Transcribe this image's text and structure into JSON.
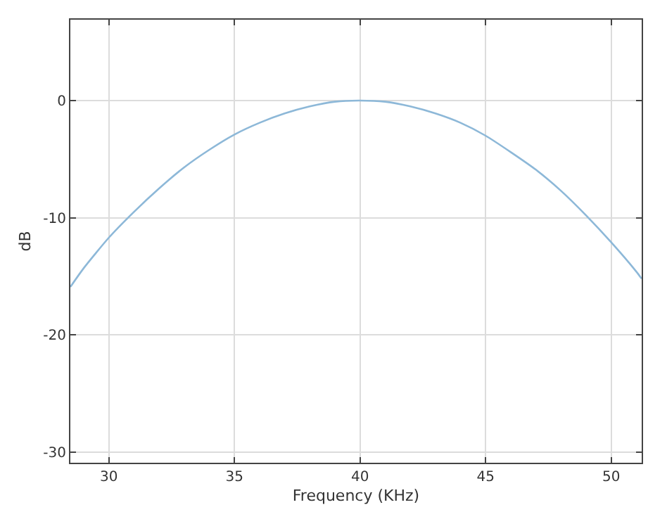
{
  "chart_data": {
    "type": "line",
    "xlabel": "Frequency (KHz)",
    "ylabel": "dB",
    "x": [
      28.47,
      29,
      30,
      31,
      32,
      33,
      34,
      35,
      36,
      37,
      38,
      39,
      40,
      41,
      42,
      43,
      44,
      45,
      46,
      47,
      48,
      49,
      50,
      51,
      51.21
    ],
    "series": [
      {
        "color": "#8db8d8",
        "values": [
          -15.9,
          -14.3,
          -11.7,
          -9.5,
          -7.5,
          -5.7,
          -4.2,
          -2.9,
          -1.9,
          -1.1,
          -0.5,
          -0.1,
          0,
          -0.1,
          -0.5,
          -1.1,
          -1.9,
          -3.0,
          -4.4,
          -5.9,
          -7.7,
          -9.8,
          -12.1,
          -14.6,
          -15.2
        ]
      }
    ],
    "xlim": [
      28.47,
      51.21
    ],
    "ylim": [
      -30.9,
      6.9
    ],
    "xticks": [
      30,
      35,
      40,
      45,
      50
    ],
    "yticks": [
      -30,
      -20,
      -10,
      0
    ],
    "grid": true
  }
}
